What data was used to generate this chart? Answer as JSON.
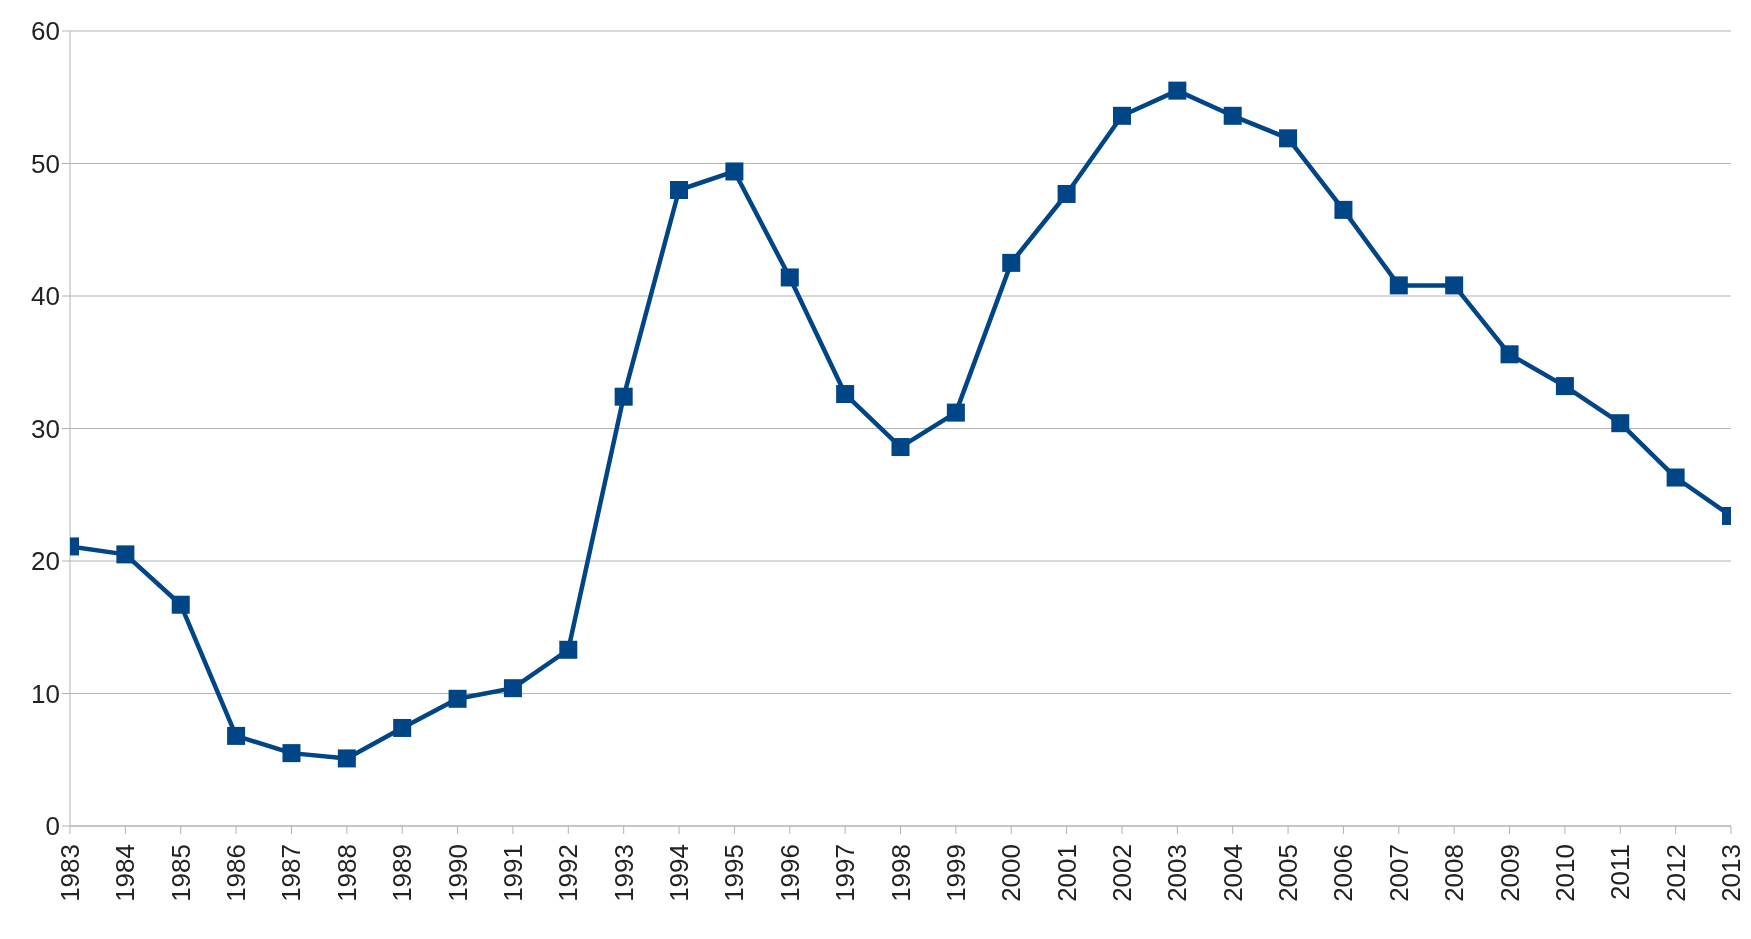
{
  "chart_data": {
    "type": "line",
    "categories": [
      "1983",
      "1984",
      "1985",
      "1986",
      "1987",
      "1988",
      "1989",
      "1990",
      "1991",
      "1992",
      "1993",
      "1994",
      "1995",
      "1996",
      "1997",
      "1998",
      "1999",
      "2000",
      "2001",
      "2002",
      "2003",
      "2004",
      "2005",
      "2006",
      "2007",
      "2008",
      "2009",
      "2010",
      "2011",
      "2012",
      "2013"
    ],
    "series": [
      {
        "color": "#004586",
        "values": [
          21.1,
          20.5,
          16.7,
          6.8,
          5.5,
          5.1,
          7.4,
          9.6,
          10.4,
          13.3,
          32.4,
          48.0,
          49.4,
          41.4,
          32.6,
          28.6,
          31.2,
          42.5,
          47.7,
          53.6,
          55.5,
          53.6,
          51.9,
          46.5,
          40.8,
          40.8,
          35.6,
          33.2,
          30.4,
          26.3,
          23.4
        ]
      }
    ],
    "ylim": [
      0,
      60
    ],
    "yticks": [
      0,
      10,
      20,
      30,
      40,
      50,
      60
    ],
    "grid": "y",
    "marker": "square",
    "line_style": "solid"
  }
}
